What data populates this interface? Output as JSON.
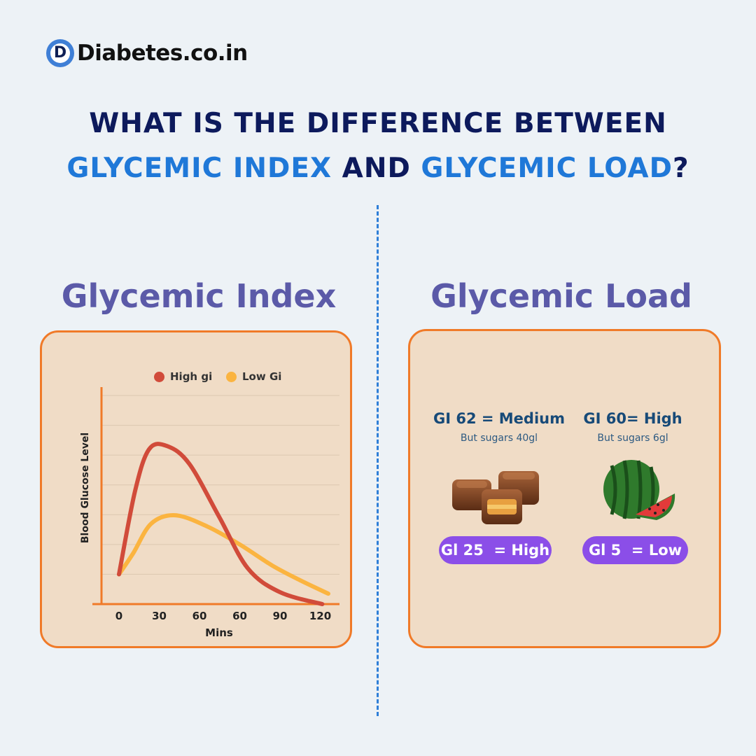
{
  "brand": {
    "name": "Diabetes.co.in",
    "mark": "D"
  },
  "headline": {
    "line1": "WHAT IS THE DIFFERENCE BETWEEN",
    "line2_part1": "GLYCEMIC INDEX",
    "line2_part2": " AND ",
    "line2_part3": "GLYCEMIC LOAD",
    "line2_part4": "?"
  },
  "left": {
    "title": "Glycemic Index"
  },
  "right": {
    "title": "Glycemic Load"
  },
  "chart_data": {
    "type": "line",
    "xlabel": "Mins",
    "ylabel": "Blood Glucose Level",
    "x_ticks": [
      "0",
      "30",
      "60",
      "60",
      "90",
      "120"
    ],
    "grid": true,
    "legend_position": "top",
    "series": [
      {
        "name": "High gi",
        "color": "#d14b3a",
        "points": [
          [
            0,
            1.0
          ],
          [
            0.4,
            3.8
          ],
          [
            0.75,
            5.2
          ],
          [
            1.2,
            5.3
          ],
          [
            1.75,
            4.7
          ],
          [
            2.5,
            2.9
          ],
          [
            3.2,
            1.2
          ],
          [
            4.0,
            0.4
          ],
          [
            5.05,
            0.0
          ]
        ]
      },
      {
        "name": "Low Gi",
        "color": "#fbb440",
        "points": [
          [
            0,
            1.0
          ],
          [
            0.35,
            1.7
          ],
          [
            0.8,
            2.7
          ],
          [
            1.4,
            2.98
          ],
          [
            2.2,
            2.6
          ],
          [
            3.0,
            2.0
          ],
          [
            3.8,
            1.3
          ],
          [
            4.5,
            0.8
          ],
          [
            5.2,
            0.35
          ]
        ]
      }
    ],
    "y_range": [
      0,
      7
    ]
  },
  "foods": [
    {
      "gi_text": "GI 62 = Medium",
      "sub": "But sugars 40gl",
      "gl_text": "Gl 25  = High",
      "image": "chocolate-candy"
    },
    {
      "gi_text": "GI 60= High",
      "sub": "But sugars 6gl",
      "gl_text": "Gl 5  = Low",
      "image": "watermelon"
    }
  ],
  "colors": {
    "accent_blue": "#1f78d8",
    "navy": "#0d1a5c",
    "panel_bg": "#f0dcc6",
    "panel_border": "#f07a28",
    "pill": "#8b4ee8"
  }
}
